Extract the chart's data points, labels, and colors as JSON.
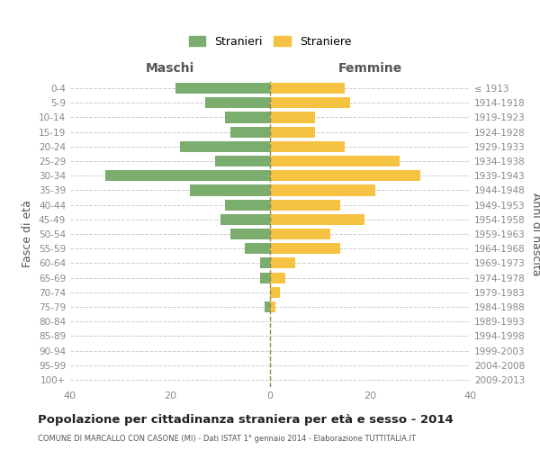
{
  "age_groups": [
    "0-4",
    "5-9",
    "10-14",
    "15-19",
    "20-24",
    "25-29",
    "30-34",
    "35-39",
    "40-44",
    "45-49",
    "50-54",
    "55-59",
    "60-64",
    "65-69",
    "70-74",
    "75-79",
    "80-84",
    "85-89",
    "90-94",
    "95-99",
    "100+"
  ],
  "birth_years": [
    "2009-2013",
    "2004-2008",
    "1999-2003",
    "1994-1998",
    "1989-1993",
    "1984-1988",
    "1979-1983",
    "1974-1978",
    "1969-1973",
    "1964-1968",
    "1959-1963",
    "1954-1958",
    "1949-1953",
    "1944-1948",
    "1939-1943",
    "1934-1938",
    "1929-1933",
    "1924-1928",
    "1919-1923",
    "1914-1918",
    "≤ 1913"
  ],
  "males": [
    19,
    13,
    9,
    8,
    18,
    11,
    33,
    16,
    9,
    10,
    8,
    5,
    2,
    2,
    0,
    1,
    0,
    0,
    0,
    0,
    0
  ],
  "females": [
    15,
    16,
    9,
    9,
    15,
    26,
    30,
    21,
    14,
    19,
    12,
    14,
    5,
    3,
    2,
    1,
    0,
    0,
    0,
    0,
    0
  ],
  "male_color": "#7aad6e",
  "female_color": "#f5c242",
  "background_color": "#ffffff",
  "grid_color": "#cccccc",
  "title": "Popolazione per cittadinanza straniera per età e sesso - 2014",
  "subtitle": "COMUNE DI MARCALLO CON CASONE (MI) - Dati ISTAT 1° gennaio 2014 - Elaborazione TUTTITALIA.IT",
  "xlabel_left": "Maschi",
  "xlabel_right": "Femmine",
  "ylabel_left": "Fasce di età",
  "ylabel_right": "Anni di nascita",
  "legend_male": "Stranieri",
  "legend_female": "Straniere",
  "xlim": 40,
  "dashed_line_color": "#8a8a50"
}
